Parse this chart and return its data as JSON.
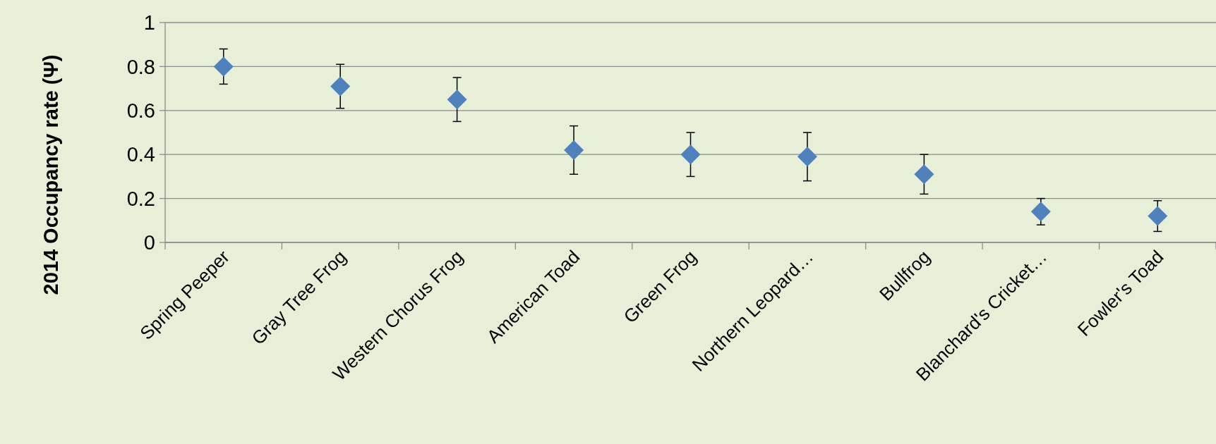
{
  "chart_data": {
    "type": "scatter",
    "ylabel": "2014 Occupancy rate (Ψ)",
    "categories": [
      "Spring Peeper",
      "Gray Tree Frog",
      "Western Chorus Frog",
      "American Toad",
      "Green Frog",
      "Northern Leopard…",
      "Bullfrog",
      "Blanchard's Cricket…",
      "Fowler's Toad"
    ],
    "series": [
      {
        "color": "#4f81bd",
        "values": [
          0.8,
          0.71,
          0.65,
          0.42,
          0.4,
          0.39,
          0.31,
          0.14,
          0.12
        ],
        "errors": [
          [
            0.72,
            0.88
          ],
          [
            0.61,
            0.81
          ],
          [
            0.55,
            0.75
          ],
          [
            0.31,
            0.53
          ],
          [
            0.3,
            0.5
          ],
          [
            0.28,
            0.5
          ],
          [
            0.22,
            0.4
          ],
          [
            0.08,
            0.2
          ],
          [
            0.05,
            0.19
          ]
        ]
      }
    ],
    "ylim": [
      0,
      1
    ],
    "yticks": [
      0,
      0.2,
      0.4,
      0.6,
      0.8,
      1
    ],
    "grid": "y",
    "marker": "diamond"
  }
}
